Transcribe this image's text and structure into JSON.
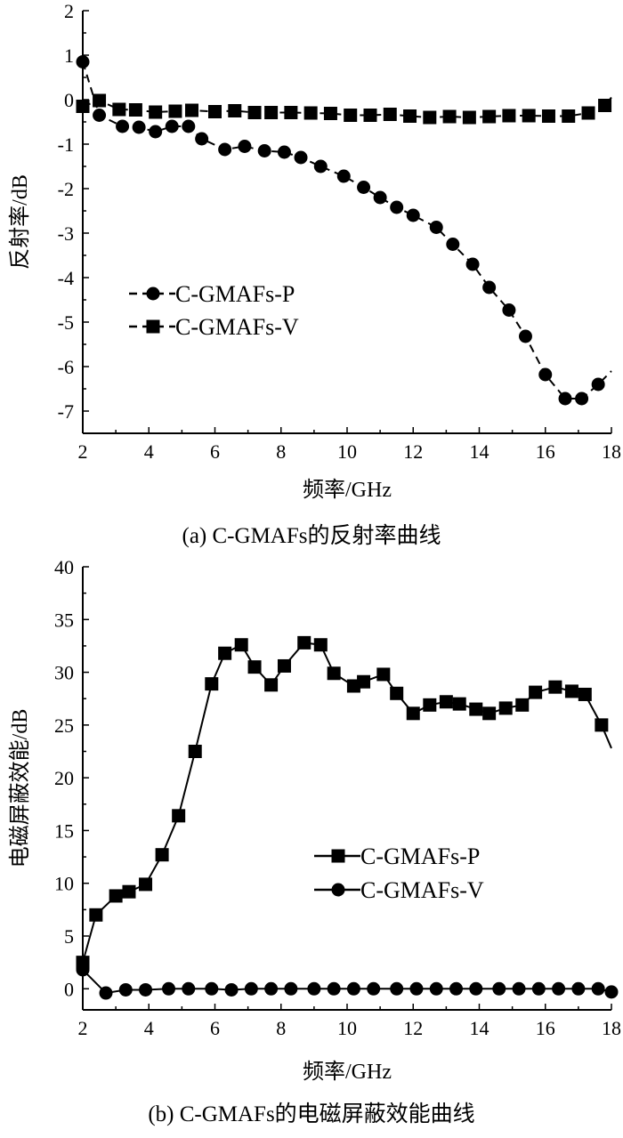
{
  "chart_data": [
    {
      "type": "line",
      "caption": "(a) C-GMAFs的反射率曲线",
      "xlabel": "频率/GHz",
      "ylabel": "反射率/dB",
      "xlim": [
        2,
        18
      ],
      "ylim": [
        -7.5,
        2
      ],
      "xticks": [
        2,
        4,
        6,
        8,
        10,
        12,
        14,
        16,
        18
      ],
      "yticks": [
        2,
        1,
        0,
        -1,
        -2,
        -3,
        -4,
        -5,
        -6,
        -7
      ],
      "legend_position": "center-left",
      "line_style": "dashed",
      "series": [
        {
          "name": "C-GMAFs-P",
          "marker": "circle",
          "x": [
            2,
            2.5,
            3.2,
            3.7,
            4.2,
            4.7,
            5.2,
            5.6,
            6.3,
            6.9,
            7.5,
            8.1,
            8.6,
            9.2,
            9.9,
            10.5,
            11.0,
            11.5,
            12.0,
            12.7,
            13.2,
            13.8,
            14.3,
            14.9,
            15.4,
            16.0,
            16.6,
            17.1,
            17.6
          ],
          "y": [
            0.85,
            -0.35,
            -0.6,
            -0.62,
            -0.72,
            -0.6,
            -0.6,
            -0.88,
            -1.12,
            -1.05,
            -1.15,
            -1.18,
            -1.3,
            -1.5,
            -1.72,
            -1.97,
            -2.2,
            -2.42,
            -2.6,
            -2.87,
            -3.25,
            -3.7,
            -4.22,
            -4.73,
            -5.32,
            -6.18,
            -6.72,
            -6.72,
            -6.4
          ],
          "line_end": [
            18,
            -6.1
          ]
        },
        {
          "name": "C-GMAFs-V",
          "marker": "square",
          "x": [
            2,
            2.5,
            3.1,
            3.6,
            4.2,
            4.8,
            5.3,
            6.0,
            6.6,
            7.2,
            7.7,
            8.3,
            8.9,
            9.5,
            10.1,
            10.7,
            11.3,
            11.9,
            12.5,
            13.1,
            13.7,
            14.3,
            14.9,
            15.5,
            16.1,
            16.7,
            17.3,
            17.8
          ],
          "y": [
            -0.15,
            -0.02,
            -0.22,
            -0.23,
            -0.28,
            -0.26,
            -0.24,
            -0.27,
            -0.25,
            -0.29,
            -0.29,
            -0.29,
            -0.3,
            -0.31,
            -0.35,
            -0.35,
            -0.33,
            -0.37,
            -0.4,
            -0.38,
            -0.4,
            -0.38,
            -0.36,
            -0.36,
            -0.37,
            -0.37,
            -0.3,
            -0.13
          ],
          "line_end": [
            18,
            0.05
          ]
        }
      ]
    },
    {
      "type": "line",
      "caption": "(b) C-GMAFs的电磁屏蔽效能曲线",
      "xlabel": "频率/GHz",
      "ylabel": "电磁屏蔽效能/dB",
      "xlim": [
        2,
        18
      ],
      "ylim": [
        -2,
        40
      ],
      "xticks": [
        2,
        4,
        6,
        8,
        10,
        12,
        14,
        16,
        18
      ],
      "yticks": [
        0,
        5,
        10,
        15,
        20,
        25,
        30,
        35,
        40
      ],
      "legend_position": "center-right",
      "line_style": "solid",
      "series": [
        {
          "name": "C-GMAFs-P",
          "marker": "square",
          "x": [
            2,
            2.4,
            3.0,
            3.4,
            3.9,
            4.4,
            4.9,
            5.4,
            5.9,
            6.3,
            6.8,
            7.2,
            7.7,
            8.1,
            8.7,
            9.2,
            9.6,
            10.2,
            10.5,
            11.1,
            11.5,
            12.0,
            12.5,
            13.0,
            13.4,
            13.9,
            14.3,
            14.8,
            15.3,
            15.7,
            16.3,
            16.8,
            17.2,
            17.7
          ],
          "y": [
            2.5,
            7.0,
            8.8,
            9.2,
            9.9,
            12.7,
            16.4,
            22.5,
            28.9,
            31.8,
            32.6,
            30.5,
            28.8,
            30.6,
            32.8,
            32.6,
            29.9,
            28.7,
            29.1,
            29.8,
            28.0,
            26.1,
            26.9,
            27.2,
            27.0,
            26.5,
            26.1,
            26.6,
            26.9,
            28.1,
            28.6,
            28.2,
            27.9,
            25.0
          ],
          "line_end": [
            18,
            22.8
          ]
        },
        {
          "name": "C-GMAFs-V",
          "marker": "circle",
          "x": [
            2,
            2.7,
            3.3,
            3.9,
            4.6,
            5.2,
            5.9,
            6.5,
            7.1,
            7.7,
            8.3,
            9.0,
            9.6,
            10.2,
            10.8,
            11.5,
            12.1,
            12.7,
            13.3,
            13.9,
            14.6,
            15.2,
            15.8,
            16.4,
            17.0,
            17.6,
            18
          ],
          "y": [
            1.8,
            -0.4,
            -0.1,
            -0.1,
            0,
            0,
            0,
            -0.1,
            0,
            0,
            0,
            0,
            0,
            0,
            0,
            0,
            0,
            0,
            0,
            0,
            0,
            0,
            0,
            0,
            0,
            0,
            -0.3
          ],
          "line_end": null
        }
      ]
    }
  ]
}
